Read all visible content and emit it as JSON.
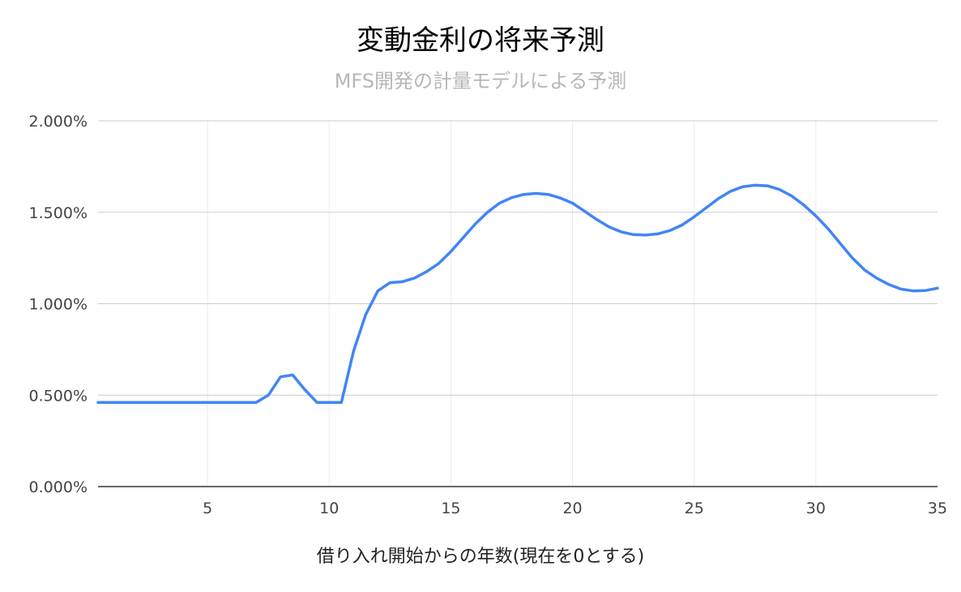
{
  "chart_data": {
    "type": "line",
    "title": "変動金利の将来予測",
    "subtitle": "MFS開発の計量モデルによる予測",
    "xlabel": "借り入れ開始からの年数(現在を0とする)",
    "ylabel": "",
    "xlim": [
      0.5,
      35
    ],
    "ylim": [
      0,
      2
    ],
    "x_ticks": [
      5,
      10,
      15,
      20,
      25,
      30,
      35
    ],
    "x_tick_labels": [
      "5",
      "10",
      "15",
      "20",
      "25",
      "30",
      "35"
    ],
    "y_ticks": [
      0,
      0.5,
      1,
      1.5,
      2
    ],
    "y_tick_labels": [
      "0.000%",
      "0.500%",
      "1.000%",
      "1.500%",
      "2.000%"
    ],
    "grid": true,
    "legend": "none",
    "series": [
      {
        "color": "#4285f4",
        "x": [
          0.5,
          1,
          2,
          3,
          4,
          5,
          6,
          7,
          7.5,
          8,
          8.5,
          9,
          9.5,
          10,
          10.5,
          11,
          11.5,
          12,
          12.5,
          13,
          13.5,
          14,
          14.5,
          15,
          15.5,
          16,
          16.5,
          17,
          17.5,
          18,
          18.5,
          19,
          19.5,
          20,
          20.5,
          21,
          21.5,
          22,
          22.5,
          23,
          23.5,
          24,
          24.5,
          25,
          25.5,
          26,
          26.5,
          27,
          27.5,
          28,
          28.5,
          29,
          29.5,
          30,
          30.5,
          31,
          31.5,
          32,
          32.5,
          33,
          33.5,
          34,
          34.5,
          35
        ],
        "values": [
          0.46,
          0.46,
          0.46,
          0.46,
          0.46,
          0.46,
          0.46,
          0.46,
          0.5,
          0.6,
          0.61,
          0.53,
          0.46,
          0.46,
          0.46,
          0.74,
          0.94,
          1.07,
          1.115,
          1.12,
          1.14,
          1.175,
          1.22,
          1.285,
          1.36,
          1.435,
          1.5,
          1.55,
          1.58,
          1.598,
          1.603,
          1.598,
          1.578,
          1.55,
          1.505,
          1.46,
          1.42,
          1.393,
          1.378,
          1.375,
          1.382,
          1.4,
          1.43,
          1.475,
          1.525,
          1.575,
          1.615,
          1.64,
          1.648,
          1.645,
          1.625,
          1.59,
          1.54,
          1.48,
          1.41,
          1.33,
          1.25,
          1.185,
          1.14,
          1.105,
          1.08,
          1.07,
          1.072,
          1.085
        ]
      }
    ]
  }
}
